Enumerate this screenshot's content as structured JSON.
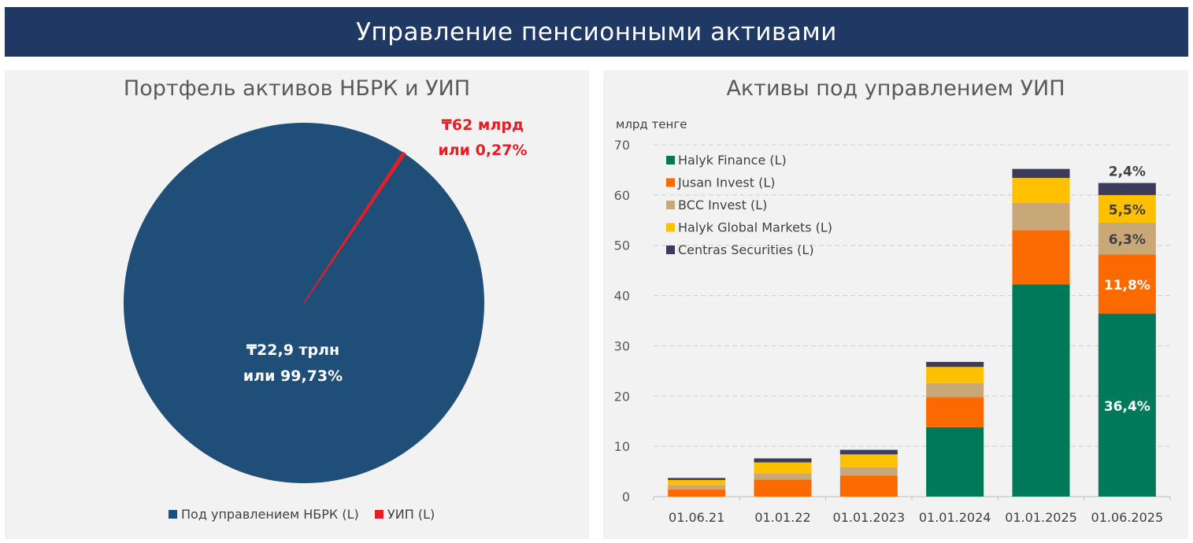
{
  "banner": {
    "title": "Управление пенсионными активами"
  },
  "colors": {
    "banner": "#1f3864",
    "nbrk": "#1f4e79",
    "uip": "#e31e24",
    "halyk_finance": "#00795a",
    "jusan": "#fa6a00",
    "bcc": "#c9a878",
    "halyk_global": "#ffc000",
    "centras": "#3c3b5c"
  },
  "pie": {
    "title": "Портфель активов НБРК и УИП",
    "chart_data": {
      "type": "pie",
      "title": "Портфель активов НБРК и УИП",
      "slices": [
        {
          "name": "Под управлением НБРК (L)",
          "value": 99.73,
          "label_line1": "₸22,9 трлн",
          "label_line2": "или 99,73%"
        },
        {
          "name": "УИП (L)",
          "value": 0.27,
          "label_line1": "₸62 млрд",
          "label_line2": "или 0,27%"
        }
      ]
    }
  },
  "bars": {
    "title": "Активы под управлением УИП",
    "chart_data": {
      "type": "bar",
      "stacked": true,
      "title": "Активы под управлением УИП",
      "ylabel": "млрд тенге",
      "ylim": [
        0,
        70
      ],
      "yticks": [
        "0",
        "10",
        "20",
        "30",
        "40",
        "50",
        "60",
        "70"
      ],
      "categories": [
        "01.06.21",
        "01.01.22",
        "01.01.2023",
        "01.01.2024",
        "01.01.2025",
        "01.06.2025"
      ],
      "series": [
        {
          "name": "Halyk Finance (L)",
          "color_key": "halyk_finance",
          "values": [
            0,
            0,
            0,
            13.8,
            42.2,
            36.4
          ]
        },
        {
          "name": "Jusan Invest (L)",
          "color_key": "jusan",
          "values": [
            1.4,
            3.4,
            4.2,
            6.0,
            10.8,
            11.8
          ]
        },
        {
          "name": "BCC Invest (L)",
          "color_key": "bcc",
          "values": [
            0.9,
            1.2,
            1.6,
            2.8,
            5.4,
            6.3
          ]
        },
        {
          "name": "Halyk Global Markets (L)",
          "color_key": "halyk_global",
          "values": [
            1.0,
            2.2,
            2.6,
            3.2,
            5.0,
            5.5
          ]
        },
        {
          "name": "Centras Securities (L)",
          "color_key": "centras",
          "values": [
            0.4,
            0.8,
            0.9,
            1.0,
            1.8,
            2.4
          ]
        }
      ],
      "data_labels": [
        {
          "category_index": 5,
          "series_index": 0,
          "text": "36,4%",
          "color": "#ffffff"
        },
        {
          "category_index": 5,
          "series_index": 1,
          "text": "11,8%",
          "color": "#ffffff"
        },
        {
          "category_index": 5,
          "series_index": 2,
          "text": "6,3%",
          "color": "#404040"
        },
        {
          "category_index": 5,
          "series_index": 3,
          "text": "5,5%",
          "color": "#404040"
        },
        {
          "category_index": 5,
          "series_index": 4,
          "text": "2,4%",
          "color": "#404040",
          "position": "above"
        }
      ],
      "legend_position": "top-left"
    }
  }
}
